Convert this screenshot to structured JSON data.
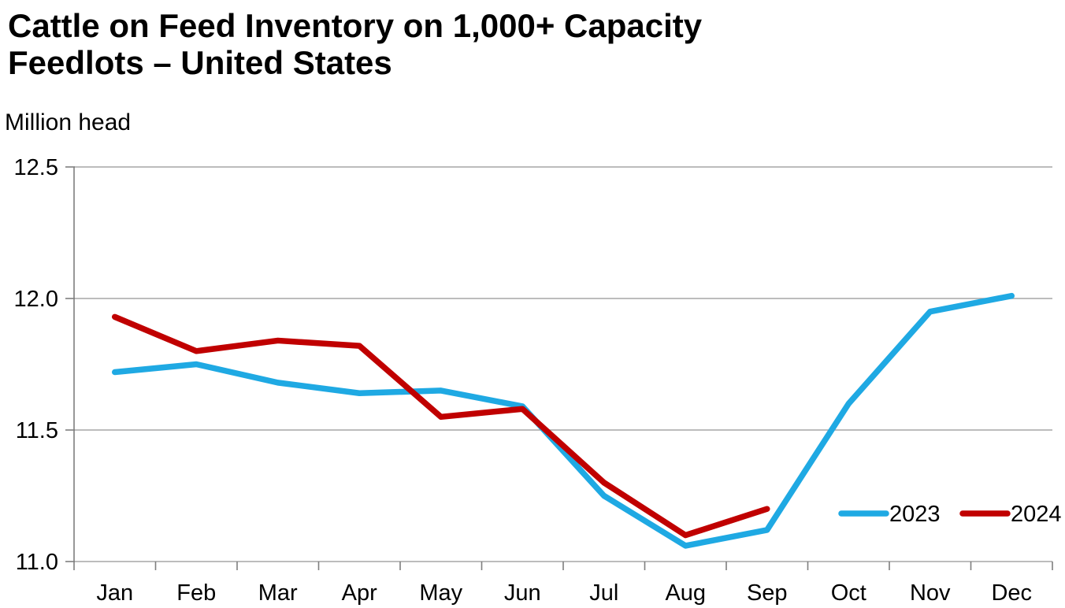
{
  "header": {
    "title_line1": "Cattle on Feed Inventory on 1,000+ Capacity",
    "title_line2": "Feedlots – United States",
    "unit_label": "Million head"
  },
  "colors": {
    "background": "#FFFFFF",
    "text": "#000000",
    "grid": "#A6A6A6",
    "axis": "#7F7F7F",
    "series_2023": "#1FA9E3",
    "series_2024": "#C00000"
  },
  "chart_data": {
    "type": "line",
    "title": "Cattle on Feed Inventory on 1,000+ Capacity Feedlots – United States",
    "xlabel": "",
    "ylabel": "Million head",
    "categories": [
      "Jan",
      "Feb",
      "Mar",
      "Apr",
      "May",
      "Jun",
      "Jul",
      "Aug",
      "Sep",
      "Oct",
      "Nov",
      "Dec"
    ],
    "ylim": [
      11.0,
      12.5
    ],
    "yticks": [
      12.5,
      12.0,
      11.5,
      11.0
    ],
    "ytick_labels": [
      "12.5",
      "12.0",
      "11.5",
      "11.0"
    ],
    "grid": "horizontal",
    "legend_position": "inside-bottom-right",
    "series": [
      {
        "name": "2023",
        "color": "#1FA9E3",
        "values": [
          11.72,
          11.75,
          11.68,
          11.64,
          11.65,
          11.59,
          11.25,
          11.06,
          11.12,
          11.6,
          11.95,
          12.01
        ]
      },
      {
        "name": "2024",
        "color": "#C00000",
        "values": [
          11.93,
          11.8,
          11.84,
          11.82,
          11.55,
          11.58,
          11.3,
          11.1,
          11.2
        ]
      }
    ]
  }
}
